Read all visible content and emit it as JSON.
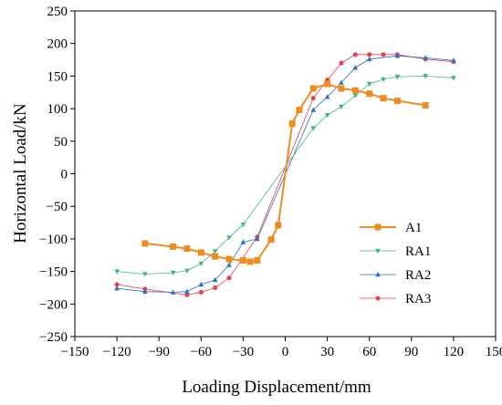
{
  "chart_data": {
    "type": "line",
    "xlabel": "Loading Displacement/mm",
    "ylabel": "Horizontal Load/kN",
    "xlim": [
      -150,
      150
    ],
    "ylim": [
      -250,
      250
    ],
    "xticks": [
      -150,
      -120,
      -90,
      -60,
      -30,
      0,
      30,
      60,
      90,
      120,
      150
    ],
    "yticks": [
      -250,
      -200,
      -150,
      -100,
      -50,
      0,
      50,
      100,
      150,
      200,
      250
    ],
    "xtick_labels": [
      "−150",
      "−120",
      "−90",
      "−60",
      "−30",
      "0",
      "30",
      "60",
      "90",
      "120",
      "150"
    ],
    "ytick_labels": [
      "−250",
      "−200",
      "−150",
      "−100",
      "−50",
      "0",
      "50",
      "100",
      "150",
      "200",
      "250"
    ],
    "grid": false,
    "legend_position": "lower-right",
    "series": [
      {
        "name": "A1",
        "color": "#f08c1e",
        "marker": "square",
        "x": [
          -100,
          -80,
          -70,
          -60,
          -50,
          -40,
          -30,
          -25,
          -20,
          -10,
          -5,
          5,
          10,
          20,
          30,
          40,
          50,
          60,
          70,
          80,
          100
        ],
        "y": [
          -107,
          -112,
          -115,
          -121,
          -127,
          -131,
          -133,
          -135,
          -133,
          -101,
          -79,
          77,
          98,
          131,
          138,
          131,
          128,
          123,
          116,
          112,
          105
        ]
      },
      {
        "name": "RA1",
        "color": "#3cb878",
        "marker": "triangle-down",
        "x": [
          -120,
          -100,
          -80,
          -70,
          -60,
          -50,
          -40,
          -30,
          20,
          30,
          40,
          50,
          60,
          70,
          80,
          100,
          120
        ],
        "y": [
          -150,
          -154,
          -152,
          -149,
          -138,
          -119,
          -98,
          -78,
          70,
          90,
          103,
          120,
          138,
          145,
          149,
          150,
          147
        ]
      },
      {
        "name": "RA2",
        "color": "#2c6fc9",
        "marker": "triangle-up",
        "x": [
          -120,
          -100,
          -80,
          -70,
          -60,
          -50,
          -40,
          -30,
          -20,
          20,
          30,
          40,
          50,
          60,
          80,
          100,
          120
        ],
        "y": [
          -176,
          -181,
          -182,
          -181,
          -170,
          -163,
          -140,
          -105,
          -100,
          98,
          118,
          140,
          163,
          176,
          181,
          178,
          174
        ]
      },
      {
        "name": "RA3",
        "color": "#e8404a",
        "marker": "circle",
        "x": [
          -120,
          -100,
          -70,
          -60,
          -50,
          -40,
          -20,
          20,
          30,
          40,
          50,
          60,
          70,
          80,
          100,
          120
        ],
        "y": [
          -170,
          -177,
          -186,
          -182,
          -175,
          -160,
          -97,
          116,
          144,
          170,
          183,
          183,
          183,
          183,
          176,
          172
        ]
      }
    ]
  }
}
